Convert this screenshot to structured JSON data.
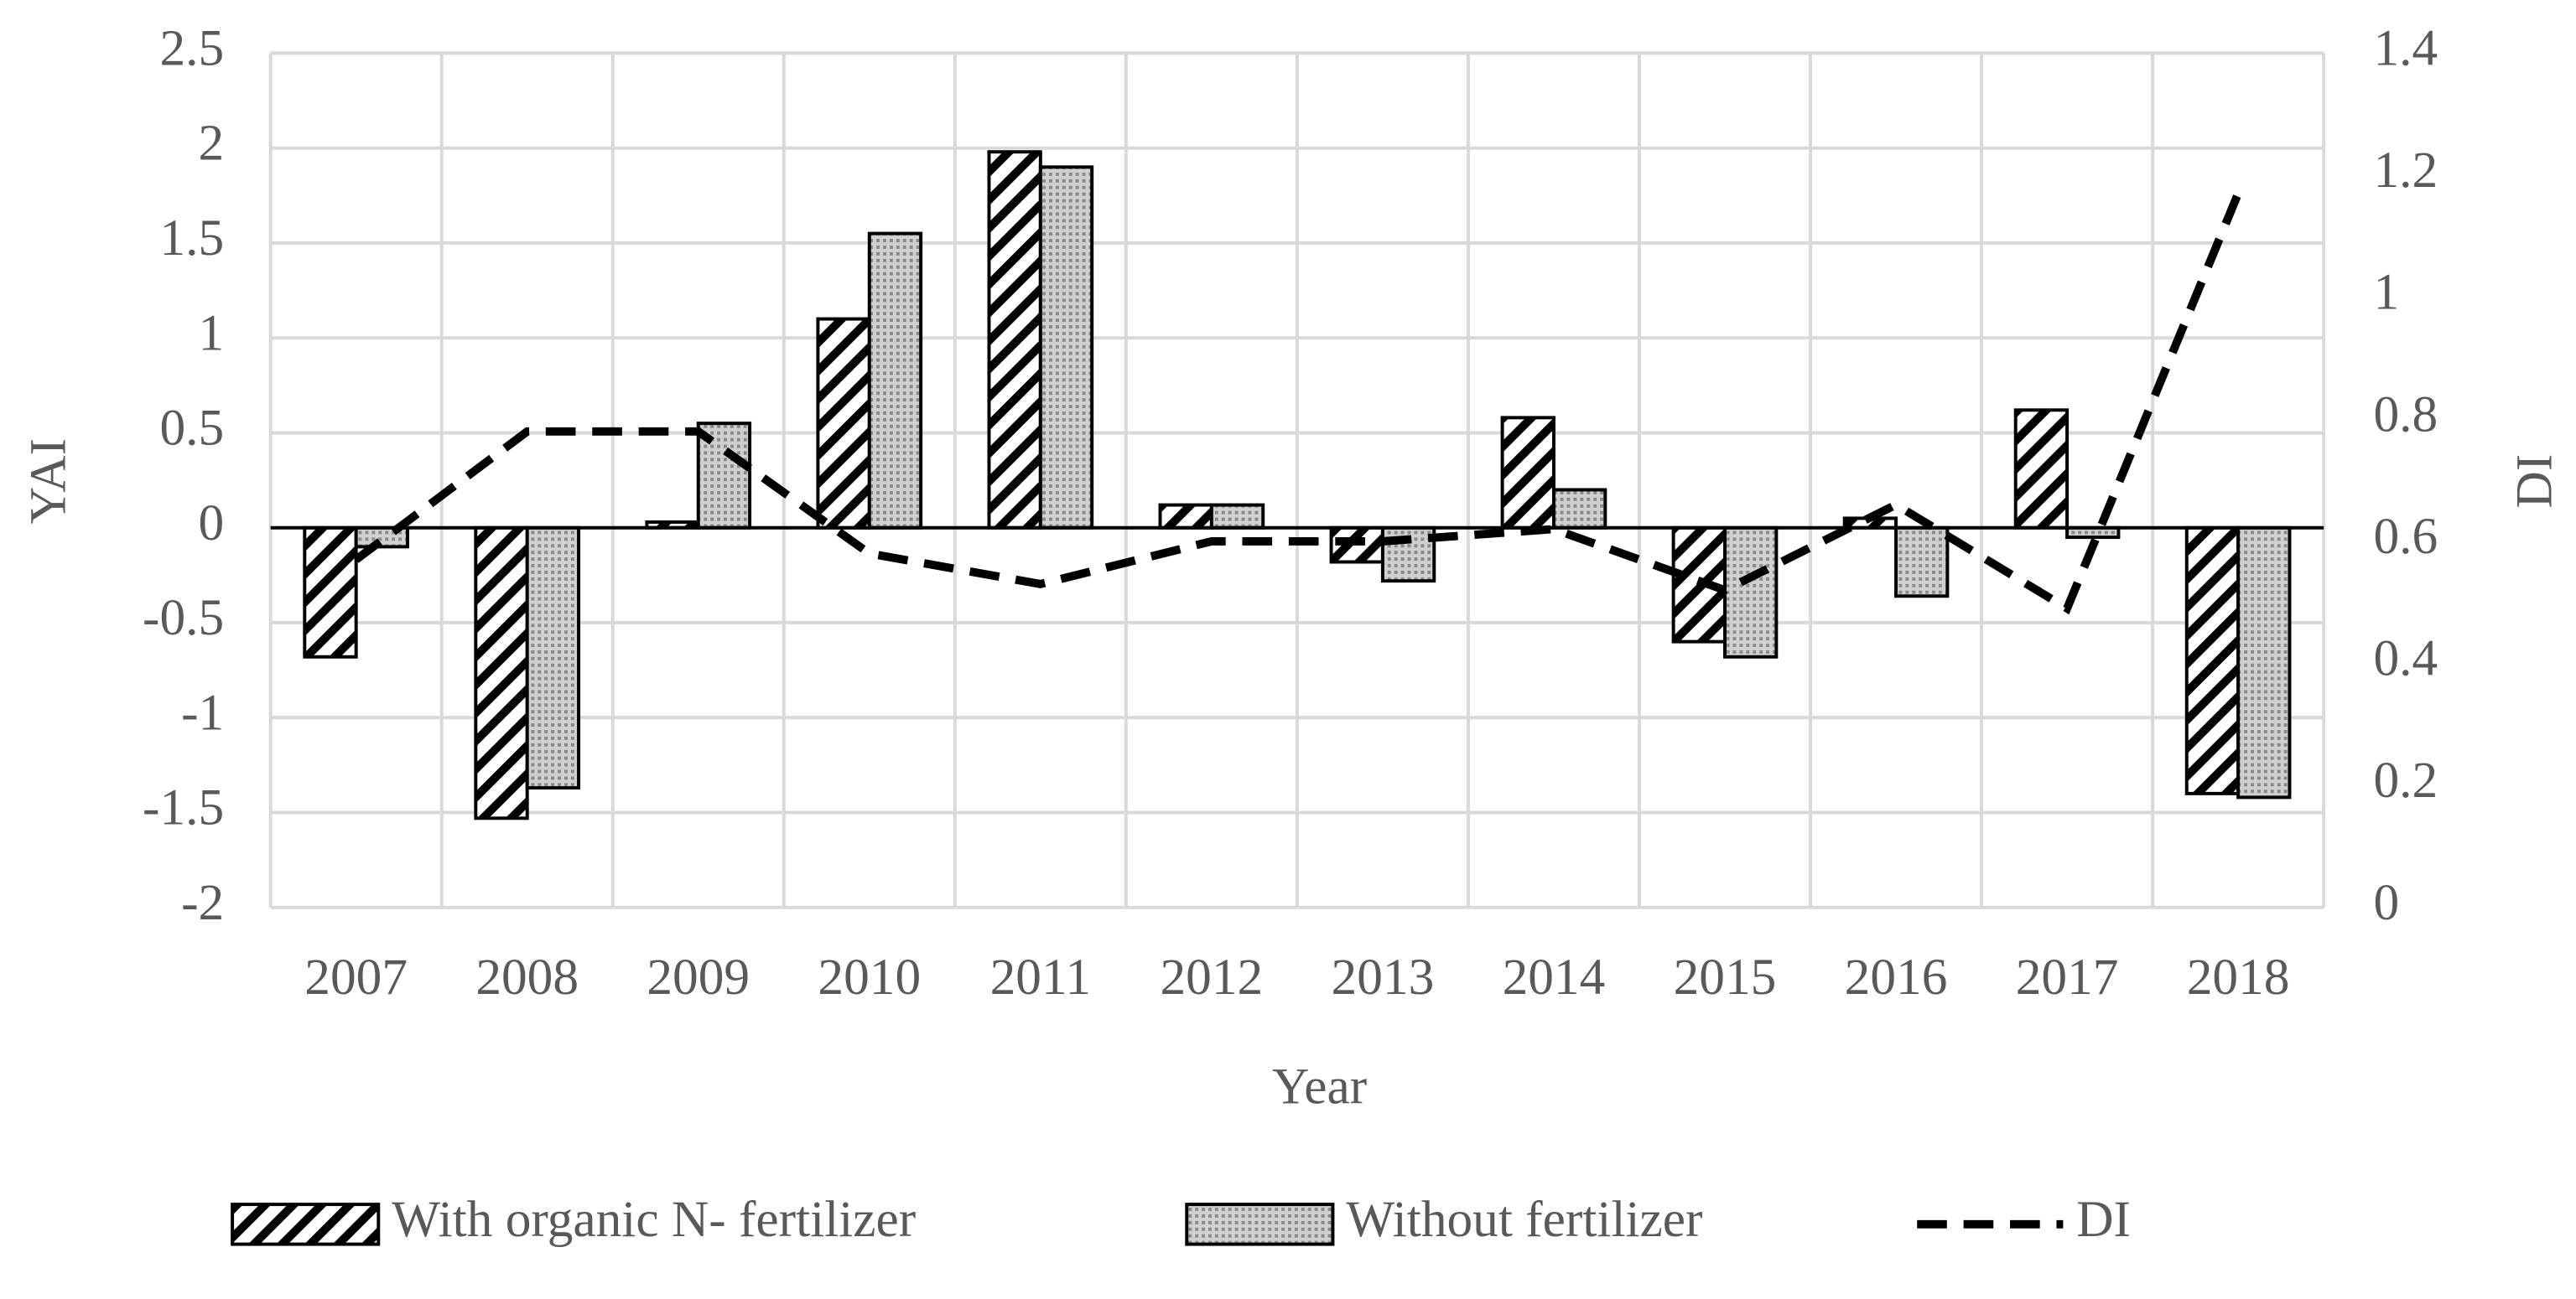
{
  "chart_data": {
    "type": "bar-line",
    "x_label": "Year",
    "y_label": "YAI",
    "y2_label": "DI",
    "categories": [
      "2007",
      "2008",
      "2009",
      "2010",
      "2011",
      "2012",
      "2013",
      "2014",
      "2015",
      "2016",
      "2017",
      "2018"
    ],
    "series": [
      {
        "name": "With organic N- fertilizer",
        "type": "bar",
        "color": "#000000",
        "pattern": "hatch",
        "values": [
          -0.68,
          -1.53,
          0.03,
          1.1,
          1.98,
          0.12,
          -0.18,
          0.58,
          -0.6,
          0.05,
          0.62,
          -1.4
        ]
      },
      {
        "name": "Without fertilizer",
        "type": "bar",
        "color": "#d0d0d0",
        "pattern": "dots",
        "values": [
          -0.1,
          -1.37,
          0.55,
          1.55,
          1.9,
          0.12,
          -0.28,
          0.2,
          -0.68,
          -0.36,
          -0.05,
          -1.42
        ]
      },
      {
        "name": "DI",
        "type": "line",
        "axis": "y2",
        "color": "#000000",
        "dashed": true,
        "values": [
          0.57,
          0.78,
          0.78,
          0.58,
          0.53,
          0.6,
          0.6,
          0.62,
          0.52,
          0.66,
          0.49,
          1.17
        ]
      }
    ],
    "ylim": [
      -2,
      2.5
    ],
    "yticks": [
      -2,
      -1.5,
      -1,
      -0.5,
      0,
      0.5,
      1,
      1.5,
      2,
      2.5
    ],
    "y2lim": [
      0,
      1.4
    ],
    "y2ticks": [
      0,
      0.2,
      0.4,
      0.6,
      0.8,
      1,
      1.2,
      1.4
    ],
    "grid": true,
    "legend": "bottom"
  }
}
